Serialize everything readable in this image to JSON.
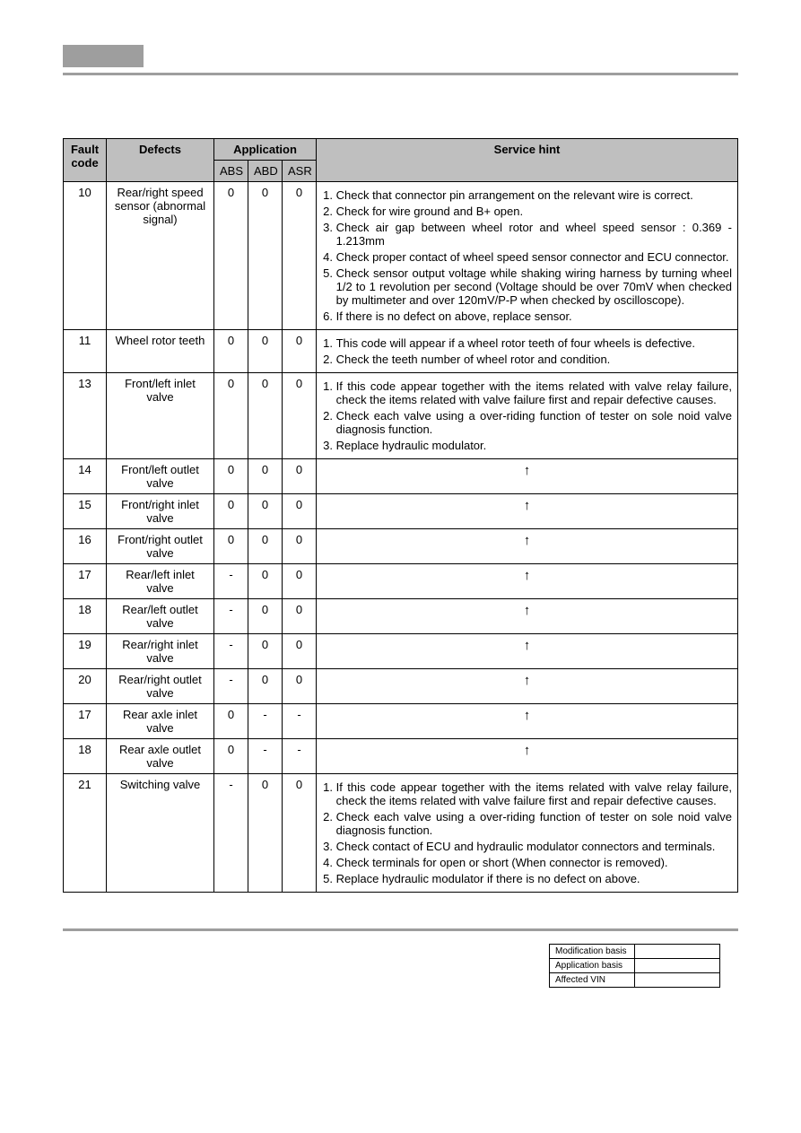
{
  "head": {
    "fault_code": "Fault code",
    "defects": "Defects",
    "application": "Application",
    "abs": "ABS",
    "abd": "ABD",
    "asr": "ASR",
    "service_hint": "Service hint"
  },
  "rows": [
    {
      "code": "10",
      "defect": "Rear/right speed sensor (abnormal signal)",
      "abs": "0",
      "abd": "0",
      "asr": "0",
      "hints": [
        "Check that connector pin arrangement on the relevant wire is correct.",
        "Check for wire ground and B+ open.",
        "Check air gap between wheel rotor and wheel speed sensor : 0.369 - 1.213mm",
        "Check proper contact of wheel speed sensor connector and ECU connector.",
        "Check sensor output voltage while shaking wiring harness by turning wheel 1/2 to 1 revolution per second (Voltage should be over 70mV when checked by multimeter and over 120mV/P-P when checked by oscilloscope).",
        "If there is no defect on above, replace sensor."
      ]
    },
    {
      "code": "11",
      "defect": "Wheel rotor teeth",
      "abs": "0",
      "abd": "0",
      "asr": "0",
      "hints": [
        "This code will appear if a wheel rotor teeth of four wheels is defective.",
        "Check the teeth number of wheel rotor and condition."
      ]
    },
    {
      "code": "13",
      "defect": "Front/left inlet valve",
      "abs": "0",
      "abd": "0",
      "asr": "0",
      "hints": [
        "If this code appear together with the items related with valve relay failure, check the items related with valve failure first and repair defective causes.",
        "Check each valve using a over-riding function of tester on sole noid valve diagnosis function.",
        "Replace hydraulic modulator."
      ]
    },
    {
      "code": "14",
      "defect": "Front/left outlet valve",
      "abs": "0",
      "abd": "0",
      "asr": "0",
      "ditto": "↑"
    },
    {
      "code": "15",
      "defect": "Front/right inlet valve",
      "abs": "0",
      "abd": "0",
      "asr": "0",
      "ditto": "↑"
    },
    {
      "code": "16",
      "defect": "Front/right outlet valve",
      "abs": "0",
      "abd": "0",
      "asr": "0",
      "ditto": "↑"
    },
    {
      "code": "17",
      "defect": "Rear/left inlet valve",
      "abs": "-",
      "abd": "0",
      "asr": "0",
      "ditto": "↑"
    },
    {
      "code": "18",
      "defect": "Rear/left outlet valve",
      "abs": "-",
      "abd": "0",
      "asr": "0",
      "ditto": "↑"
    },
    {
      "code": "19",
      "defect": "Rear/right inlet valve",
      "abs": "-",
      "abd": "0",
      "asr": "0",
      "ditto": "↑"
    },
    {
      "code": "20",
      "defect": "Rear/right outlet valve",
      "abs": "-",
      "abd": "0",
      "asr": "0",
      "ditto": "↑"
    },
    {
      "code": "17",
      "defect": "Rear axle inlet valve",
      "abs": "0",
      "abd": "-",
      "asr": "-",
      "ditto": "↑"
    },
    {
      "code": "18",
      "defect": "Rear axle outlet valve",
      "abs": "0",
      "abd": "-",
      "asr": "-",
      "ditto": "↑"
    },
    {
      "code": "21",
      "defect": "Switching valve",
      "abs": "-",
      "abd": "0",
      "asr": "0",
      "hints": [
        "If this code appear together with the items related with valve relay failure, check the items related with valve failure first and repair defective causes.",
        "Check each valve using a over-riding function of tester on sole noid valve diagnosis function.",
        "Check contact of ECU and hydraulic modulator connectors and terminals.",
        "Check terminals for open or short (When connector is removed).",
        "Replace hydraulic modulator if there is no defect on above."
      ]
    }
  ],
  "rev": {
    "r1": "Modification basis",
    "r2": "Application basis",
    "r3": "Affected VIN"
  }
}
